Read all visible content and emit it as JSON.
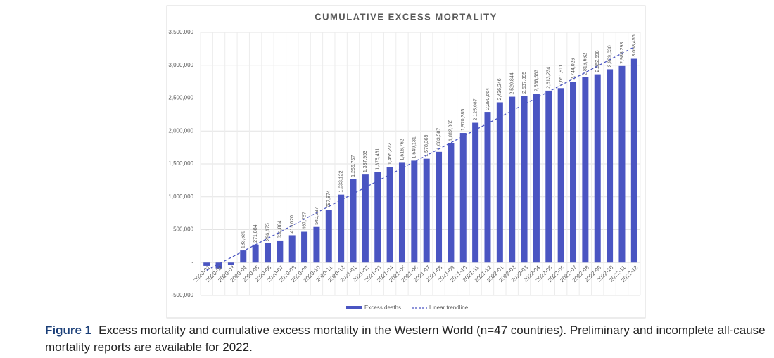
{
  "chart_data": {
    "type": "bar",
    "title": "CUMULATIVE EXCESS MORTALITY",
    "categories": [
      "2020-01",
      "2020-02",
      "2020-03",
      "2020-04",
      "2020-05",
      "2020-06",
      "2020-07",
      "2020-08",
      "2020-09",
      "2020-10",
      "2020-11",
      "2020-12",
      "2021-01",
      "2021-02",
      "2021-03",
      "2021-04",
      "2021-05",
      "2021-06",
      "2021-07",
      "2021-08",
      "2021-09",
      "2021-10",
      "2021-11",
      "2021-12",
      "2022-01",
      "2022-02",
      "2022-03",
      "2022-04",
      "2022-05",
      "2022-06",
      "2022-07",
      "2022-08",
      "2022-09",
      "2022-10",
      "2022-11",
      "2022-12"
    ],
    "series": [
      {
        "name": "Excess deaths",
        "color": "#4a55c2",
        "values": [
          -50000,
          -90000,
          -40000,
          183539,
          271884,
          296175,
          334884,
          415020,
          467767,
          540237,
          797874,
          1033122,
          1266757,
          1337953,
          1375481,
          1455272,
          1516762,
          1549131,
          1578369,
          1683587,
          1812065,
          1970385,
          2125087,
          2290664,
          2436246,
          2520844,
          2537395,
          2568563,
          2613234,
          2651911,
          2744026,
          2816662,
          2862598,
          2939030,
          2988293,
          3098456
        ],
        "value_labels": [
          null,
          null,
          null,
          "183,539",
          "271,884",
          "296,175",
          "334,884",
          "415,020",
          "467,767",
          "540,237",
          "797,874",
          "1,033,122",
          "1,266,757",
          "1,337,953",
          "1,375,481",
          "1,455,272",
          "1,516,762",
          "1,549,131",
          "1,578,369",
          "1,683,587",
          "1,812,065",
          "1,970,385",
          "2,125,087",
          "2,290,664",
          "2,436,246",
          "2,520,844",
          "2,537,395",
          "2,568,563",
          "2,613,234",
          "2,651,911",
          "2,744,026",
          "2,816,662",
          "2,862,598",
          "2,939,030",
          "2,988,293",
          "3,098,456"
        ]
      }
    ],
    "trendline": {
      "name": "Linear trendline",
      "color": "#4a55c2"
    },
    "ylim": [
      -500000,
      3500000
    ],
    "yticks": [
      {
        "value": -500000,
        "label": "-500,000"
      },
      {
        "value": 0,
        "label": "-"
      },
      {
        "value": 500000,
        "label": "500,000"
      },
      {
        "value": 1000000,
        "label": "1,000,000"
      },
      {
        "value": 1500000,
        "label": "1,500,000"
      },
      {
        "value": 2000000,
        "label": "2,000,000"
      },
      {
        "value": 2500000,
        "label": "2,500,000"
      },
      {
        "value": 3000000,
        "label": "3,000,000"
      },
      {
        "value": 3500000,
        "label": "3,500,000"
      }
    ],
    "grid": true
  },
  "caption": {
    "label": "Figure 1",
    "text": "Excess mortality and cumulative excess mortality in the Western World (n=47 countries). Preliminary and incomplete all-cause mortality reports are available for 2022."
  }
}
